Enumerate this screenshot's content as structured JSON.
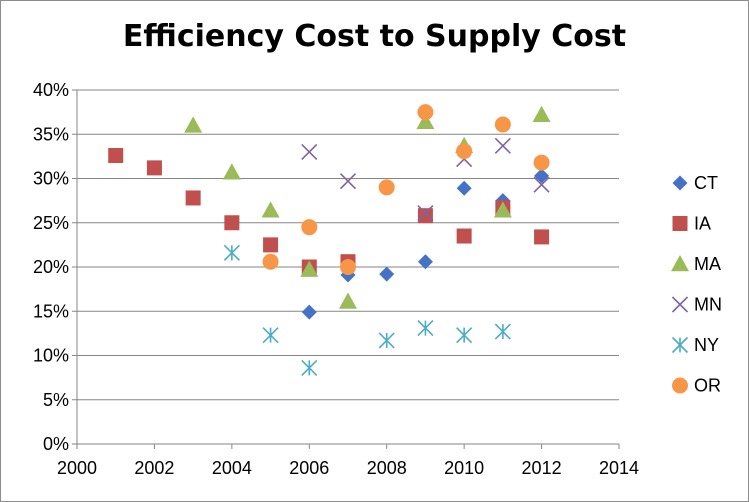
{
  "chart_data": {
    "type": "scatter",
    "title": "Efficiency Cost to Supply Cost",
    "xlabel": "",
    "ylabel": "",
    "xlim": [
      2000,
      2014
    ],
    "ylim": [
      0,
      0.4
    ],
    "x_ticks": [
      "2000",
      "2002",
      "2004",
      "2006",
      "2008",
      "2010",
      "2012",
      "2014"
    ],
    "y_ticks": [
      "0%",
      "5%",
      "10%",
      "15%",
      "20%",
      "25%",
      "30%",
      "35%",
      "40%"
    ],
    "grid": "horizontal",
    "legend_position": "right",
    "series": [
      {
        "name": "CT",
        "marker": "diamond",
        "color": "#4472c4",
        "x": [
          2006,
          2007,
          2008,
          2009,
          2010,
          2011,
          2012
        ],
        "y": [
          0.149,
          0.191,
          0.192,
          0.206,
          0.289,
          0.275,
          0.303
        ]
      },
      {
        "name": "IA",
        "marker": "square",
        "color": "#c0504d",
        "x": [
          2001,
          2002,
          2003,
          2004,
          2005,
          2006,
          2007,
          2009,
          2010,
          2011,
          2012
        ],
        "y": [
          0.326,
          0.312,
          0.278,
          0.25,
          0.225,
          0.2,
          0.206,
          0.258,
          0.235,
          0.267,
          0.234
        ]
      },
      {
        "name": "MA",
        "marker": "triangle",
        "color": "#9bbb59",
        "x": [
          2003,
          2004,
          2005,
          2006,
          2007,
          2009,
          2010,
          2011,
          2012
        ],
        "y": [
          0.36,
          0.307,
          0.264,
          0.197,
          0.161,
          0.364,
          0.337,
          0.264,
          0.372
        ]
      },
      {
        "name": "MN",
        "marker": "x",
        "color": "#8064a2",
        "x": [
          2006,
          2007,
          2009,
          2010,
          2011,
          2012
        ],
        "y": [
          0.33,
          0.297,
          0.261,
          0.322,
          0.337,
          0.293
        ]
      },
      {
        "name": "NY",
        "marker": "asterisk",
        "color": "#4bacc6",
        "x": [
          2004,
          2005,
          2006,
          2008,
          2009,
          2010,
          2011
        ],
        "y": [
          0.216,
          0.123,
          0.086,
          0.117,
          0.131,
          0.123,
          0.127
        ]
      },
      {
        "name": "OR",
        "marker": "circle",
        "color": "#f79646",
        "x": [
          2005,
          2006,
          2007,
          2008,
          2009,
          2010,
          2011,
          2012
        ],
        "y": [
          0.206,
          0.245,
          0.2,
          0.29,
          0.375,
          0.331,
          0.361,
          0.318
        ]
      }
    ]
  }
}
